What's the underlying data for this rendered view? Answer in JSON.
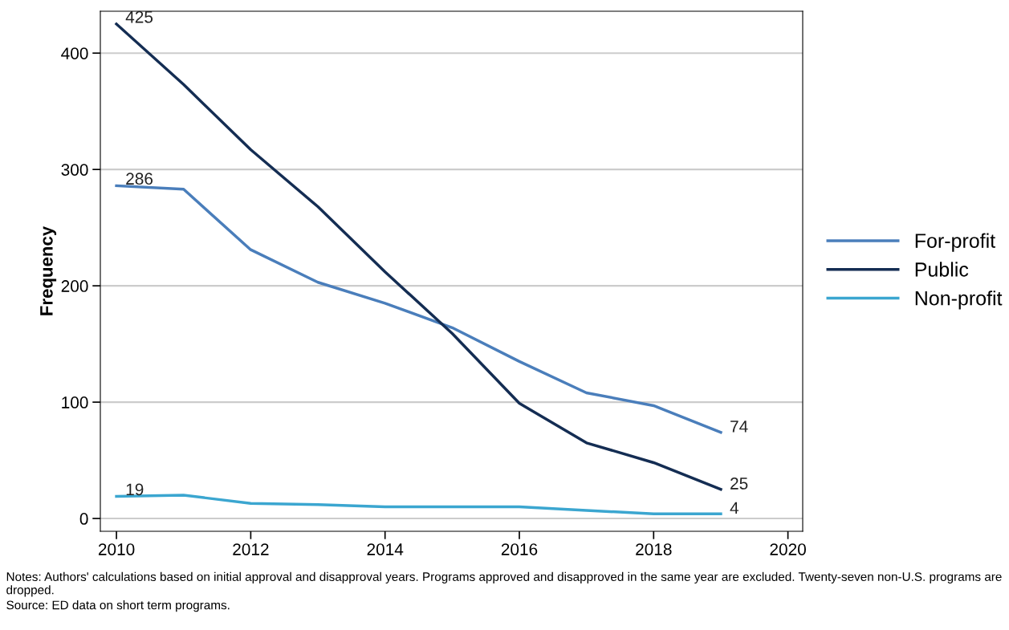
{
  "chart_data": {
    "type": "line",
    "ylabel": "Frequency",
    "x": [
      2010,
      2011,
      2012,
      2013,
      2014,
      2015,
      2016,
      2017,
      2018,
      2019
    ],
    "series": [
      {
        "name": "For-profit",
        "color": "#4a7ebb",
        "values": [
          286,
          283,
          231,
          203,
          185,
          164,
          135,
          108,
          97,
          74
        ],
        "value_labels": [
          "286",
          null,
          null,
          null,
          null,
          null,
          null,
          null,
          null,
          "74"
        ]
      },
      {
        "name": "Public",
        "color": "#142d53",
        "values": [
          425,
          373,
          317,
          268,
          212,
          159,
          99,
          65,
          48,
          25
        ],
        "value_labels": [
          "425",
          null,
          null,
          null,
          null,
          null,
          null,
          null,
          null,
          "25"
        ]
      },
      {
        "name": "Non-profit",
        "color": "#3ba6d0",
        "values": [
          19,
          20,
          13,
          12,
          10,
          10,
          10,
          7,
          4,
          4
        ],
        "value_labels": [
          "19",
          null,
          null,
          null,
          null,
          null,
          null,
          null,
          null,
          "4"
        ]
      }
    ],
    "xlim": [
      2009.76,
      2020.22
    ],
    "ylim": [
      -11,
      436
    ],
    "xticks": [
      2010,
      2012,
      2014,
      2016,
      2018,
      2020
    ],
    "yticks": [
      0,
      100,
      200,
      300,
      400
    ],
    "grid": "y",
    "legend": "right",
    "marker": "none",
    "line_style": "solid",
    "annotations": [
      "Notes: Authors' calculations based on initial approval and disapproval years. Programs approved and disapproved in the same year are excluded. Twenty-seven non-U.S. programs are dropped.",
      "Source: ED data on short term programs."
    ]
  }
}
